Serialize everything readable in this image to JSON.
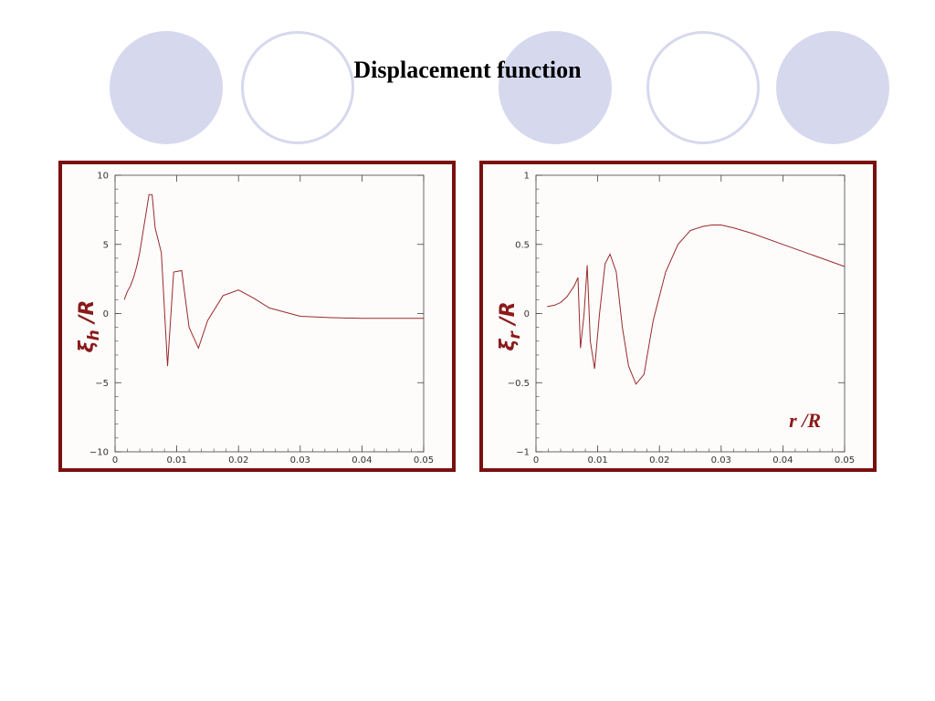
{
  "slide": {
    "title": "Displacement function",
    "colors": {
      "circle": "#d6d8ee",
      "frame": "#7a1010",
      "curve": "#9a2a2a",
      "label": "#8b1a1a"
    }
  },
  "chart_data": [
    {
      "type": "line",
      "ylabel_main": "ξ",
      "ylabel_sub": "h",
      "ylabel_suffix": " /R",
      "xlabel": "",
      "xlim": [
        0,
        0.05
      ],
      "ylim": [
        -10,
        10
      ],
      "x_ticks": [
        "0",
        "0.01",
        "0.02",
        "0.03",
        "0.04",
        "0.05"
      ],
      "y_ticks": [
        "−10",
        "−5",
        "0",
        "5",
        "10"
      ],
      "series": [
        {
          "x": [
            0.0015,
            0.002,
            0.0025,
            0.003,
            0.0035,
            0.004,
            0.0045,
            0.005,
            0.0055,
            0.006,
            0.0065,
            0.0075,
            0.0085,
            0.0095,
            0.0108,
            0.012,
            0.0135,
            0.015,
            0.0175,
            0.02,
            0.0225,
            0.025,
            0.03,
            0.035,
            0.04,
            0.045,
            0.05
          ],
          "y": [
            1.0,
            1.6,
            2.0,
            2.6,
            3.4,
            4.4,
            5.8,
            7.2,
            8.6,
            8.6,
            6.2,
            4.4,
            -3.8,
            3.0,
            3.1,
            -1.0,
            -2.5,
            -0.5,
            1.3,
            1.7,
            1.1,
            0.4,
            -0.2,
            -0.3,
            -0.35,
            -0.35,
            -0.35
          ]
        }
      ]
    },
    {
      "type": "line",
      "ylabel_main": "ξ",
      "ylabel_sub": "r",
      "ylabel_suffix": " /R",
      "xlabel": "r /R",
      "xlim": [
        0,
        0.05
      ],
      "ylim": [
        -1,
        1
      ],
      "x_ticks": [
        "0",
        "0.01",
        "0.02",
        "0.03",
        "0.04",
        "0.05"
      ],
      "y_ticks": [
        "−1",
        "−0.5",
        "0",
        "0.5",
        "1"
      ],
      "series": [
        {
          "x": [
            0.0018,
            0.003,
            0.004,
            0.005,
            0.0062,
            0.0068,
            0.0072,
            0.0078,
            0.0083,
            0.0088,
            0.0095,
            0.0103,
            0.0112,
            0.012,
            0.013,
            0.014,
            0.015,
            0.0162,
            0.0175,
            0.019,
            0.021,
            0.023,
            0.025,
            0.027,
            0.0285,
            0.03,
            0.032,
            0.035,
            0.04,
            0.045,
            0.05
          ],
          "y": [
            0.05,
            0.06,
            0.08,
            0.12,
            0.2,
            0.26,
            -0.25,
            0.0,
            0.35,
            -0.2,
            -0.4,
            0.0,
            0.36,
            0.43,
            0.3,
            -0.1,
            -0.38,
            -0.51,
            -0.44,
            -0.05,
            0.3,
            0.5,
            0.6,
            0.63,
            0.64,
            0.64,
            0.62,
            0.58,
            0.5,
            0.42,
            0.34
          ]
        }
      ]
    }
  ]
}
